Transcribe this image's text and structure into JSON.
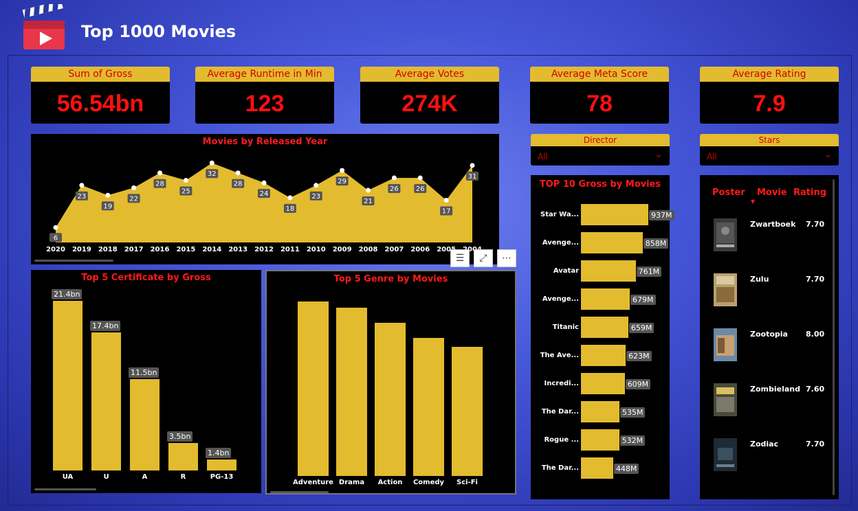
{
  "app": {
    "title": "Top 1000 Movies"
  },
  "kpis": [
    {
      "label": "Sum of Gross",
      "value": "56.54bn"
    },
    {
      "label": "Average Runtime in Min",
      "value": "123"
    },
    {
      "label": "Average Votes",
      "value": "274K"
    },
    {
      "label": "Average Meta Score",
      "value": "78"
    },
    {
      "label": "Average Rating",
      "value": "7.9"
    }
  ],
  "slicers": {
    "director": {
      "label": "Director",
      "value": "All"
    },
    "stars": {
      "label": "Stars",
      "value": "All"
    }
  },
  "chart_data": [
    {
      "type": "area",
      "title": "Movies by Released Year",
      "categories": [
        "2020",
        "2019",
        "2018",
        "2017",
        "2016",
        "2015",
        "2014",
        "2013",
        "2012",
        "2011",
        "2010",
        "2009",
        "2008",
        "2007",
        "2006",
        "2005",
        "2004"
      ],
      "values": [
        6,
        23,
        19,
        22,
        28,
        25,
        32,
        28,
        24,
        18,
        23,
        29,
        21,
        26,
        26,
        17,
        31
      ],
      "color": "#e3bb2f"
    },
    {
      "type": "bar",
      "title": "Top 5 Certificate by Gross",
      "categories": [
        "UA",
        "U",
        "A",
        "R",
        "PG-13"
      ],
      "values": [
        21.4,
        17.4,
        11.5,
        3.5,
        1.4
      ],
      "labels": [
        "21.4bn",
        "17.4bn",
        "11.5bn",
        "3.5bn",
        "1.4bn"
      ],
      "color": "#e3bb2f"
    },
    {
      "type": "bar",
      "title": "Top 5 Genre by Movies",
      "categories": [
        "Adventure",
        "Drama",
        "Action",
        "Comedy",
        "Sci-Fi"
      ],
      "values": [
        196,
        189,
        172,
        155,
        145
      ],
      "color": "#e3bb2f"
    },
    {
      "type": "bar",
      "orientation": "horizontal",
      "title": "TOP 10 Gross by Movies",
      "categories": [
        "Star Wa...",
        "Avenge...",
        "Avatar",
        "Avenge...",
        "Titanic",
        "The Ave...",
        "Incredi...",
        "The Dar...",
        "Rogue ...",
        "The Dar..."
      ],
      "values": [
        937,
        858,
        761,
        679,
        659,
        623,
        609,
        535,
        532,
        448
      ],
      "labels": [
        "937M",
        "858M",
        "761M",
        "679M",
        "659M",
        "623M",
        "609M",
        "535M",
        "532M",
        "448M"
      ],
      "color": "#e3bb2f"
    }
  ],
  "table": {
    "headers": {
      "poster": "Poster",
      "movie": "Movie",
      "rating": "Rating"
    },
    "rows": [
      {
        "movie": "Zwartboek",
        "rating": "7.70"
      },
      {
        "movie": "Zulu",
        "rating": "7.70"
      },
      {
        "movie": "Zootopia",
        "rating": "8.00"
      },
      {
        "movie": "Zombieland",
        "rating": "7.60"
      },
      {
        "movie": "Zodiac",
        "rating": "7.70"
      }
    ]
  },
  "visual_header": {
    "icons": [
      "filter-icon",
      "focus-mode-icon",
      "more-options-icon"
    ]
  },
  "colors": {
    "accent": "#e3bb2f",
    "title_red": "#ff1a1a",
    "kpi_red": "#ff1010",
    "panel": "#000000"
  }
}
